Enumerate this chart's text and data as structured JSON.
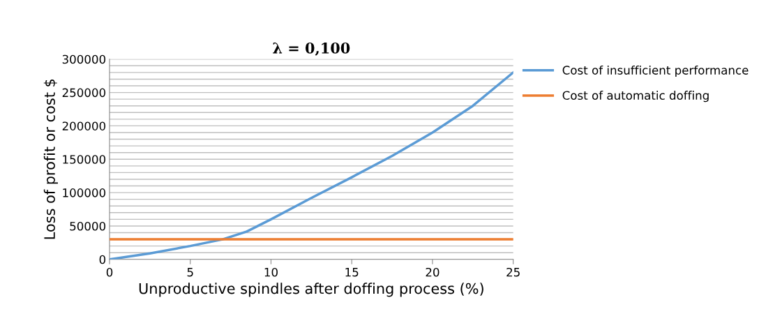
{
  "chart_data": {
    "type": "line",
    "title": "λ = 0,100",
    "xlabel": "Unproductive spindles after doffing process (%)",
    "ylabel": "Loss of profit or cost $",
    "x": [
      0,
      2.5,
      5,
      7,
      8.5,
      10,
      12.5,
      15,
      17.5,
      20,
      22.5,
      25
    ],
    "series": [
      {
        "name": "Cost of insufficient performance",
        "color": "#5b9bd5",
        "values": [
          0,
          9000,
          20000,
          30000,
          41700,
          60000,
          92000,
          123000,
          155000,
          190000,
          230000,
          280000
        ]
      },
      {
        "name": "Cost of automatic doffing",
        "color": "#ed7d31",
        "values": [
          30000,
          30000,
          30000,
          30000,
          30000,
          30000,
          30000,
          30000,
          30000,
          30000,
          30000,
          30000
        ]
      }
    ],
    "xlim": [
      0,
      25
    ],
    "xticks": [
      0,
      5,
      10,
      15,
      20,
      25
    ],
    "ylim": [
      0,
      300000
    ],
    "yticks": [
      0,
      {
        "value": 10000,
        "label": null
      },
      {
        "value": 20000,
        "label": null
      },
      {
        "value": 30000,
        "label": null
      },
      {
        "value": 40000,
        "label": null
      },
      50000,
      {
        "value": 60000,
        "label": null
      },
      {
        "value": 70000,
        "label": null
      },
      {
        "value": 80000,
        "label": null
      },
      {
        "value": 90000,
        "label": null
      },
      100000,
      {
        "value": 110000,
        "label": null
      },
      {
        "value": 120000,
        "label": null
      },
      {
        "value": 130000,
        "label": null
      },
      {
        "value": 140000,
        "label": null
      },
      150000,
      {
        "value": 160000,
        "label": null
      },
      {
        "value": 170000,
        "label": null
      },
      {
        "value": 180000,
        "label": null
      },
      {
        "value": 190000,
        "label": null
      },
      200000,
      {
        "value": 210000,
        "label": null
      },
      {
        "value": 220000,
        "label": null
      },
      {
        "value": 230000,
        "label": null
      },
      {
        "value": 240000,
        "label": null
      },
      250000,
      {
        "value": 260000,
        "label": null
      },
      {
        "value": 270000,
        "label": null
      },
      {
        "value": 280000,
        "label": null
      },
      {
        "value": 290000,
        "label": null
      },
      300000
    ],
    "grid": "y",
    "legend": "right",
    "marker": "none",
    "line_style": "solid"
  }
}
